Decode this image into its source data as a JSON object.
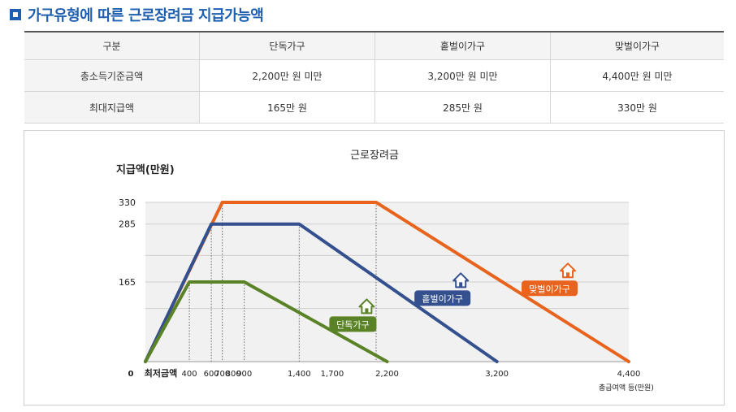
{
  "header": {
    "title": "가구유형에 따른 근로장려금 지급가능액"
  },
  "table": {
    "columns": [
      "구분",
      "단독가구",
      "홑벌이가구",
      "맞벌이가구"
    ],
    "rows": [
      {
        "label": "총소득기준금액",
        "values": [
          "2,200만 원 미만",
          "3,200만 원 미만",
          "4,400만 원 미만"
        ]
      },
      {
        "label": "최대지급액",
        "values": [
          "165만 원",
          "285만 원",
          "330만 원"
        ]
      }
    ]
  },
  "chart_data": {
    "type": "line",
    "title": "근로장려금",
    "ylabel": "지급액(만원)",
    "xlabel": "총급여액 등(만원)",
    "x_zero_label": "0",
    "x_min_label": "최저금액",
    "xlim": [
      0,
      4400
    ],
    "ylim": [
      0,
      330
    ],
    "x_ticks": [
      400,
      600,
      700,
      800,
      900,
      1400,
      1700,
      2200,
      3200,
      4400
    ],
    "x_tick_labels": [
      "400",
      "600",
      "700",
      "800",
      "900",
      "1,400",
      "1,700",
      "2,200",
      "3,200",
      "4,400"
    ],
    "y_ticks": [
      165,
      285,
      330
    ],
    "y_tick_labels": [
      "165",
      "285",
      "330"
    ],
    "series": [
      {
        "name": "맞벌이가구",
        "color": "#e8641e",
        "icon": "house-icon",
        "x": [
          0,
          700,
          2100,
          4400
        ],
        "y": [
          0,
          330,
          330,
          0
        ]
      },
      {
        "name": "홑벌이가구",
        "color": "#34508e",
        "icon": "house-icon",
        "x": [
          0,
          600,
          1400,
          3200
        ],
        "y": [
          0,
          285,
          285,
          0
        ]
      },
      {
        "name": "단독가구",
        "color": "#5a8226",
        "icon": "house-icon",
        "x": [
          0,
          400,
          900,
          2200
        ],
        "y": [
          0,
          165,
          165,
          0
        ]
      }
    ],
    "grid": true,
    "legend": "inline labels"
  }
}
